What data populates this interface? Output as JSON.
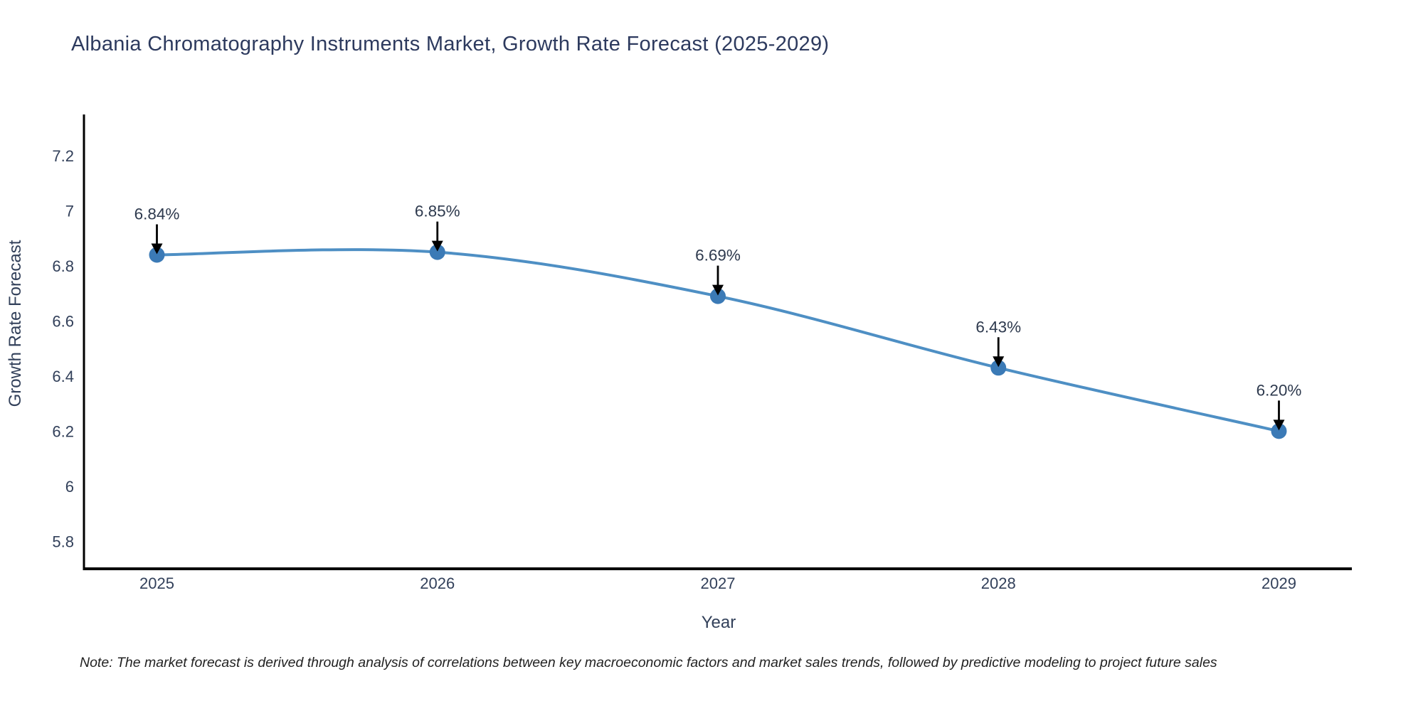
{
  "title": "Albania Chromatography Instruments Market, Growth Rate Forecast (2025-2029)",
  "note": "Note: The market forecast is derived through analysis of correlations between key macroeconomic factors and market sales trends, followed by predictive modeling to project future sales",
  "chart_data": {
    "type": "line",
    "title": "Albania Chromatography Instruments Market, Growth Rate Forecast (2025-2029)",
    "xlabel": "Year",
    "ylabel": "Growth Rate Forecast",
    "x": [
      2025,
      2026,
      2027,
      2028,
      2029
    ],
    "series": [
      {
        "name": "Growth Rate Forecast",
        "values": [
          6.84,
          6.85,
          6.69,
          6.43,
          6.2
        ]
      }
    ],
    "point_labels": [
      "6.84%",
      "6.85%",
      "6.69%",
      "6.43%",
      "6.20%"
    ],
    "x_tick_labels": [
      "2025",
      "2026",
      "2027",
      "2028",
      "2029"
    ],
    "y_ticks": [
      5.8,
      6,
      6.2,
      6.4,
      6.6,
      6.8,
      7,
      7.2
    ],
    "xlim": [
      2024.74,
      2029.26
    ],
    "ylim": [
      5.7,
      7.35
    ],
    "line_shape": "spline",
    "grid": false,
    "legend_position": "none",
    "colors": {
      "line": "#4e8fc4",
      "marker": "#3b7ab6",
      "annotation_arrow": "#000000",
      "annotation_text": "#2e3a4e",
      "tick_text": "#32405a",
      "axis_title_text": "#32405a",
      "title_text": "#2d3a5e",
      "axis_line": "#000000",
      "background": "#ffffff"
    }
  }
}
